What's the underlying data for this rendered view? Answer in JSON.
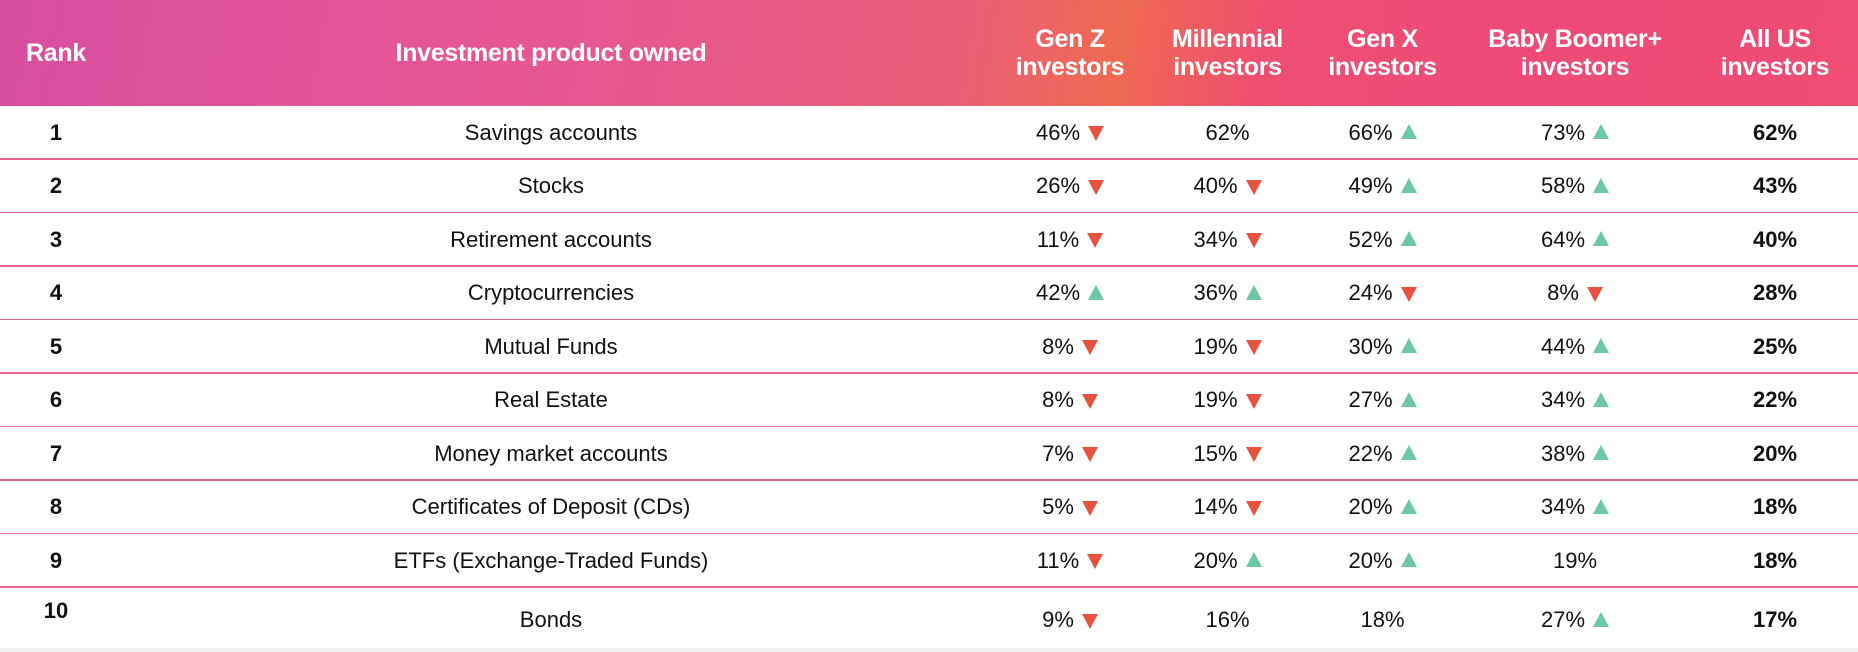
{
  "chart_data": {
    "type": "table",
    "columns": [
      "Rank",
      "Investment product owned",
      "Gen Z investors",
      "Millennial investors",
      "Gen X investors",
      "Baby Boomer+ investors",
      "All US investors"
    ],
    "header_lines": {
      "rank": [
        "Rank"
      ],
      "product": [
        "Investment product owned"
      ],
      "genz": [
        "Gen Z",
        "investors"
      ],
      "mill": [
        "Millennial",
        "investors"
      ],
      "genx": [
        "Gen X",
        "investors"
      ],
      "boom": [
        "Baby Boomer+",
        "investors"
      ],
      "all": [
        "All US",
        "investors"
      ]
    },
    "colors": {
      "up": "#6cc9a4",
      "down": "#e7523e",
      "divider": "#e5658f",
      "header_start": "#d64f9e",
      "header_end": "#ef4d72"
    },
    "rows": [
      {
        "rank": "1",
        "product": "Savings accounts",
        "genz": {
          "v": "46%",
          "t": "down"
        },
        "mill": {
          "v": "62%",
          "t": "none"
        },
        "genx": {
          "v": "66%",
          "t": "up"
        },
        "boom": {
          "v": "73%",
          "t": "up"
        },
        "all": "62%"
      },
      {
        "rank": "2",
        "product": "Stocks",
        "genz": {
          "v": "26%",
          "t": "down"
        },
        "mill": {
          "v": "40%",
          "t": "down"
        },
        "genx": {
          "v": "49%",
          "t": "up"
        },
        "boom": {
          "v": "58%",
          "t": "up"
        },
        "all": "43%"
      },
      {
        "rank": "3",
        "product": "Retirement accounts",
        "genz": {
          "v": "11%",
          "t": "down"
        },
        "mill": {
          "v": "34%",
          "t": "down"
        },
        "genx": {
          "v": "52%",
          "t": "up"
        },
        "boom": {
          "v": "64%",
          "t": "up"
        },
        "all": "40%"
      },
      {
        "rank": "4",
        "product": "Cryptocurrencies",
        "genz": {
          "v": "42%",
          "t": "up"
        },
        "mill": {
          "v": "36%",
          "t": "up"
        },
        "genx": {
          "v": "24%",
          "t": "down"
        },
        "boom": {
          "v": "8%",
          "t": "down"
        },
        "all": "28%"
      },
      {
        "rank": "5",
        "product": "Mutual Funds",
        "genz": {
          "v": "8%",
          "t": "down"
        },
        "mill": {
          "v": "19%",
          "t": "down"
        },
        "genx": {
          "v": "30%",
          "t": "up"
        },
        "boom": {
          "v": "44%",
          "t": "up"
        },
        "all": "25%"
      },
      {
        "rank": "6",
        "product": "Real Estate",
        "genz": {
          "v": "8%",
          "t": "down"
        },
        "mill": {
          "v": "19%",
          "t": "down"
        },
        "genx": {
          "v": "27%",
          "t": "up"
        },
        "boom": {
          "v": "34%",
          "t": "up"
        },
        "all": "22%"
      },
      {
        "rank": "7",
        "product": "Money market accounts",
        "genz": {
          "v": "7%",
          "t": "down"
        },
        "mill": {
          "v": "15%",
          "t": "down"
        },
        "genx": {
          "v": "22%",
          "t": "up"
        },
        "boom": {
          "v": "38%",
          "t": "up"
        },
        "all": "20%"
      },
      {
        "rank": "8",
        "product": "Certificates of Deposit (CDs)",
        "genz": {
          "v": "5%",
          "t": "down"
        },
        "mill": {
          "v": "14%",
          "t": "down"
        },
        "genx": {
          "v": "20%",
          "t": "up"
        },
        "boom": {
          "v": "34%",
          "t": "up"
        },
        "all": "18%"
      },
      {
        "rank": "9",
        "product": "ETFs (Exchange-Traded Funds)",
        "genz": {
          "v": "11%",
          "t": "down"
        },
        "mill": {
          "v": "20%",
          "t": "up"
        },
        "genx": {
          "v": "20%",
          "t": "up"
        },
        "boom": {
          "v": "19%",
          "t": "none"
        },
        "all": "18%"
      },
      {
        "rank": "10",
        "product": "Bonds",
        "genz": {
          "v": "9%",
          "t": "down"
        },
        "mill": {
          "v": "16%",
          "t": "none"
        },
        "genx": {
          "v": "18%",
          "t": "none"
        },
        "boom": {
          "v": "27%",
          "t": "up"
        },
        "all": "17%"
      }
    ]
  }
}
